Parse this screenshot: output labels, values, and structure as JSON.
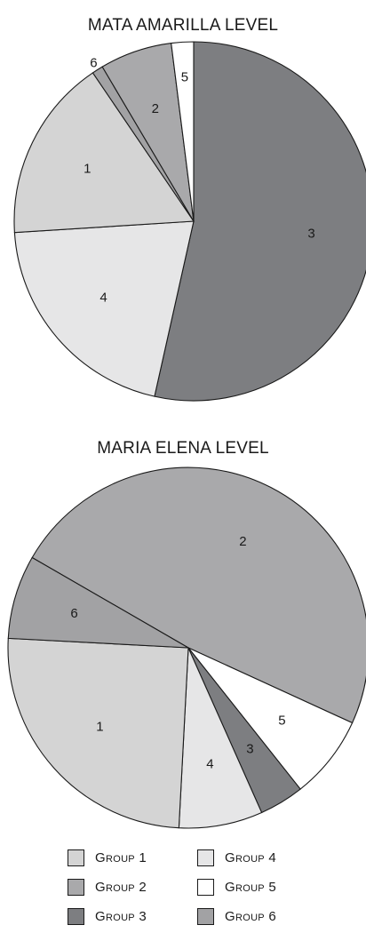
{
  "colors": {
    "group1": "#d4d4d4",
    "group2": "#a9a9ab",
    "group3": "#7d7e81",
    "group4": "#e6e6e7",
    "group5": "#ffffff",
    "group6": "#a2a2a4"
  },
  "legend": [
    {
      "label": "Group 1",
      "color_key": "group1"
    },
    {
      "label": "Group 4",
      "color_key": "group4"
    },
    {
      "label": "Group 2",
      "color_key": "group2"
    },
    {
      "label": "Group 5",
      "color_key": "group5"
    },
    {
      "label": "Group 3",
      "color_key": "group3"
    },
    {
      "label": "Group 6",
      "color_key": "group6"
    }
  ],
  "chart_data": [
    {
      "type": "pie",
      "title": "MATA AMARILLA LEVEL",
      "categories": [
        "3",
        "4",
        "1",
        "6",
        "2",
        "5"
      ],
      "values": [
        53.5,
        20.5,
        16.5,
        1.0,
        6.5,
        2.0
      ],
      "colors": [
        "#7d7e81",
        "#e6e6e7",
        "#d4d4d4",
        "#a2a2a4",
        "#a9a9ab",
        "#ffffff"
      ]
    },
    {
      "type": "pie",
      "title": "MARIA ELENA LEVEL",
      "categories": [
        "2",
        "5",
        "3",
        "4",
        "1",
        "6"
      ],
      "values": [
        48.5,
        7.5,
        4.0,
        7.5,
        25.0,
        7.5
      ],
      "colors": [
        "#a9a9ab",
        "#ffffff",
        "#7d7e81",
        "#e6e6e7",
        "#d4d4d4",
        "#a2a2a4"
      ]
    }
  ]
}
